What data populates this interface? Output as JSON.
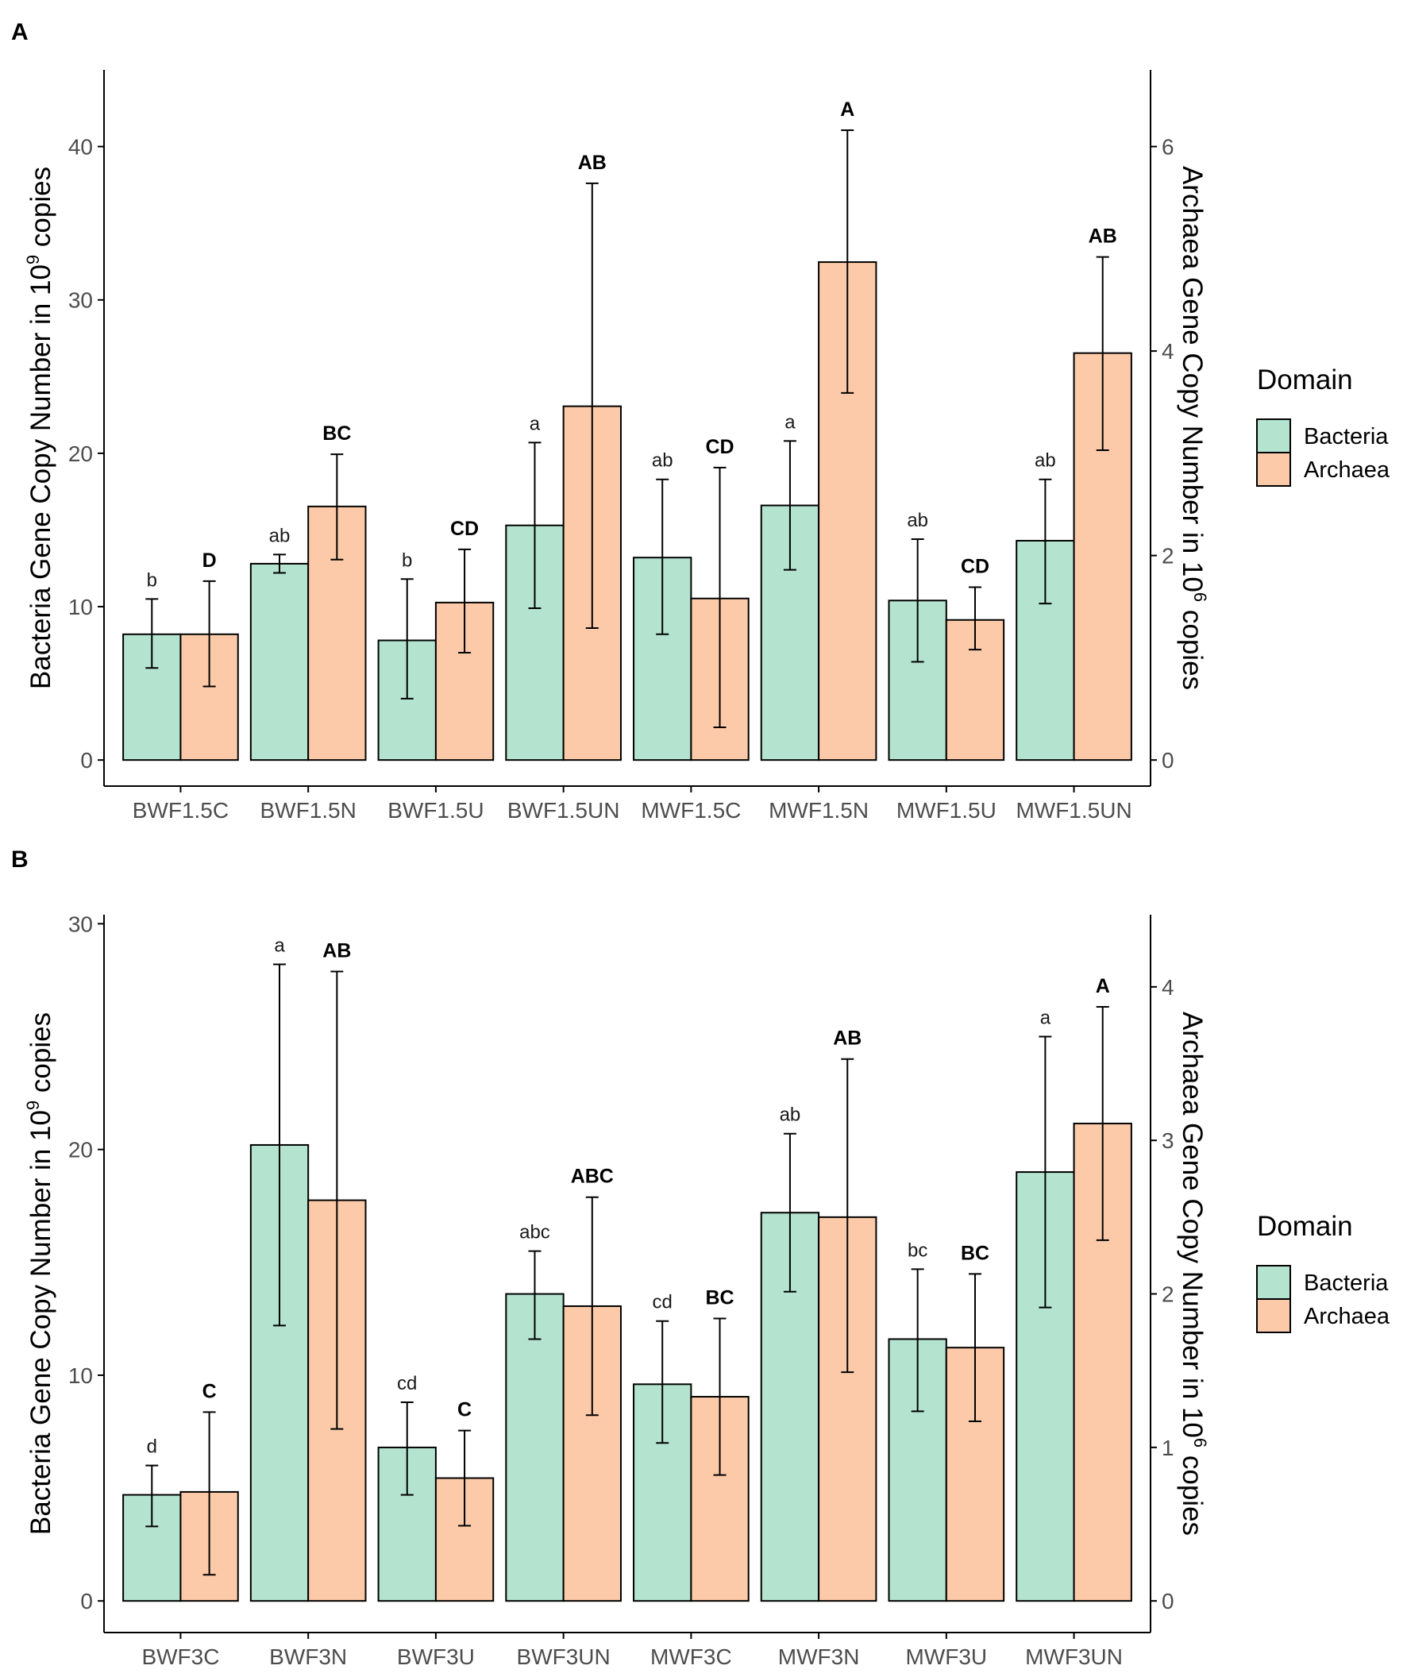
{
  "colors": {
    "bacteria": "#b4e3d0",
    "archaea": "#fccaa9",
    "axis": "#000000",
    "tick_text": "#4d4d4d"
  },
  "legend": {
    "title": "Domain",
    "items": [
      "Bacteria",
      "Archaea"
    ]
  },
  "chart_data": [
    {
      "panel_label": "A",
      "type": "bar",
      "grid": false,
      "categories": [
        "BWF1.5C",
        "BWF1.5N",
        "BWF1.5U",
        "BWF1.5UN",
        "MWF1.5C",
        "MWF1.5N",
        "MWF1.5U",
        "MWF1.5UN"
      ],
      "ylabel": {
        "base": "Bacteria Gene Copy Number in 10",
        "sup": "9",
        "tail": " copies"
      },
      "ylabel_right": {
        "base": "Archaea Gene Copy Number in 10",
        "sup": "6",
        "tail": " copies"
      },
      "ylim": [
        -1.7,
        45
      ],
      "ylim_right": [
        -0.255,
        6.75
      ],
      "yticks": [
        0,
        10,
        20,
        30,
        40
      ],
      "yticks_right": [
        0,
        2,
        4,
        6
      ],
      "series": [
        {
          "name": "Bacteria",
          "axis": "left",
          "values": [
            8.2,
            12.8,
            7.8,
            15.3,
            13.2,
            16.6,
            10.4,
            14.3
          ],
          "err_low": [
            6.0,
            12.2,
            4.0,
            9.9,
            8.2,
            12.4,
            6.4,
            10.2
          ],
          "err_high": [
            10.5,
            13.4,
            11.8,
            20.7,
            18.3,
            20.8,
            14.4,
            18.3
          ],
          "letters": [
            "b",
            "ab",
            "b",
            "a",
            "ab",
            "a",
            "ab",
            "ab"
          ]
        },
        {
          "name": "Archaea",
          "axis": "right",
          "values": [
            1.23,
            2.48,
            1.54,
            3.46,
            1.58,
            4.87,
            1.37,
            3.98
          ],
          "err_low": [
            0.72,
            1.96,
            1.05,
            1.29,
            0.32,
            3.59,
            1.08,
            3.03
          ],
          "err_high": [
            1.75,
            2.99,
            2.06,
            5.64,
            2.86,
            6.16,
            1.69,
            4.92
          ],
          "letters": [
            "D",
            "BC",
            "CD",
            "AB",
            "CD",
            "A",
            "CD",
            "AB"
          ]
        }
      ]
    },
    {
      "panel_label": "B",
      "type": "bar",
      "grid": false,
      "categories": [
        "BWF3C",
        "BWF3N",
        "BWF3U",
        "BWF3UN",
        "MWF3C",
        "MWF3N",
        "MWF3U",
        "MWF3UN"
      ],
      "ylabel": {
        "base": "Bacteria Gene Copy Number in 10",
        "sup": "9",
        "tail": " copies"
      },
      "ylabel_right": {
        "base": "Archaea Gene Copy Number in 10",
        "sup": "6",
        "tail": " copies"
      },
      "ylim": [
        -1.4,
        30.4
      ],
      "ylim_right": [
        -0.206,
        4.47
      ],
      "yticks": [
        0,
        10,
        20,
        30
      ],
      "yticks_right": [
        0,
        1,
        2,
        3,
        4
      ],
      "series": [
        {
          "name": "Bacteria",
          "axis": "left",
          "values": [
            4.7,
            20.2,
            6.8,
            13.6,
            9.6,
            17.2,
            11.6,
            19.0
          ],
          "err_low": [
            3.3,
            12.2,
            4.7,
            11.6,
            7.0,
            13.7,
            8.4,
            13.0
          ],
          "err_high": [
            6.0,
            28.2,
            8.8,
            15.5,
            12.4,
            20.7,
            14.7,
            25.0
          ],
          "letters": [
            "d",
            "a",
            "cd",
            "abc",
            "cd",
            "ab",
            "bc",
            "a"
          ]
        },
        {
          "name": "Archaea",
          "axis": "right",
          "values": [
            0.71,
            2.61,
            0.8,
            1.92,
            1.33,
            2.5,
            1.65,
            3.11
          ],
          "err_low": [
            0.17,
            1.12,
            0.49,
            1.21,
            0.82,
            1.49,
            1.17,
            2.35
          ],
          "err_high": [
            1.23,
            4.1,
            1.11,
            2.63,
            1.84,
            3.53,
            2.13,
            3.87
          ],
          "letters": [
            "C",
            "AB",
            "C",
            "ABC",
            "BC",
            "AB",
            "BC",
            "A"
          ]
        }
      ]
    }
  ]
}
